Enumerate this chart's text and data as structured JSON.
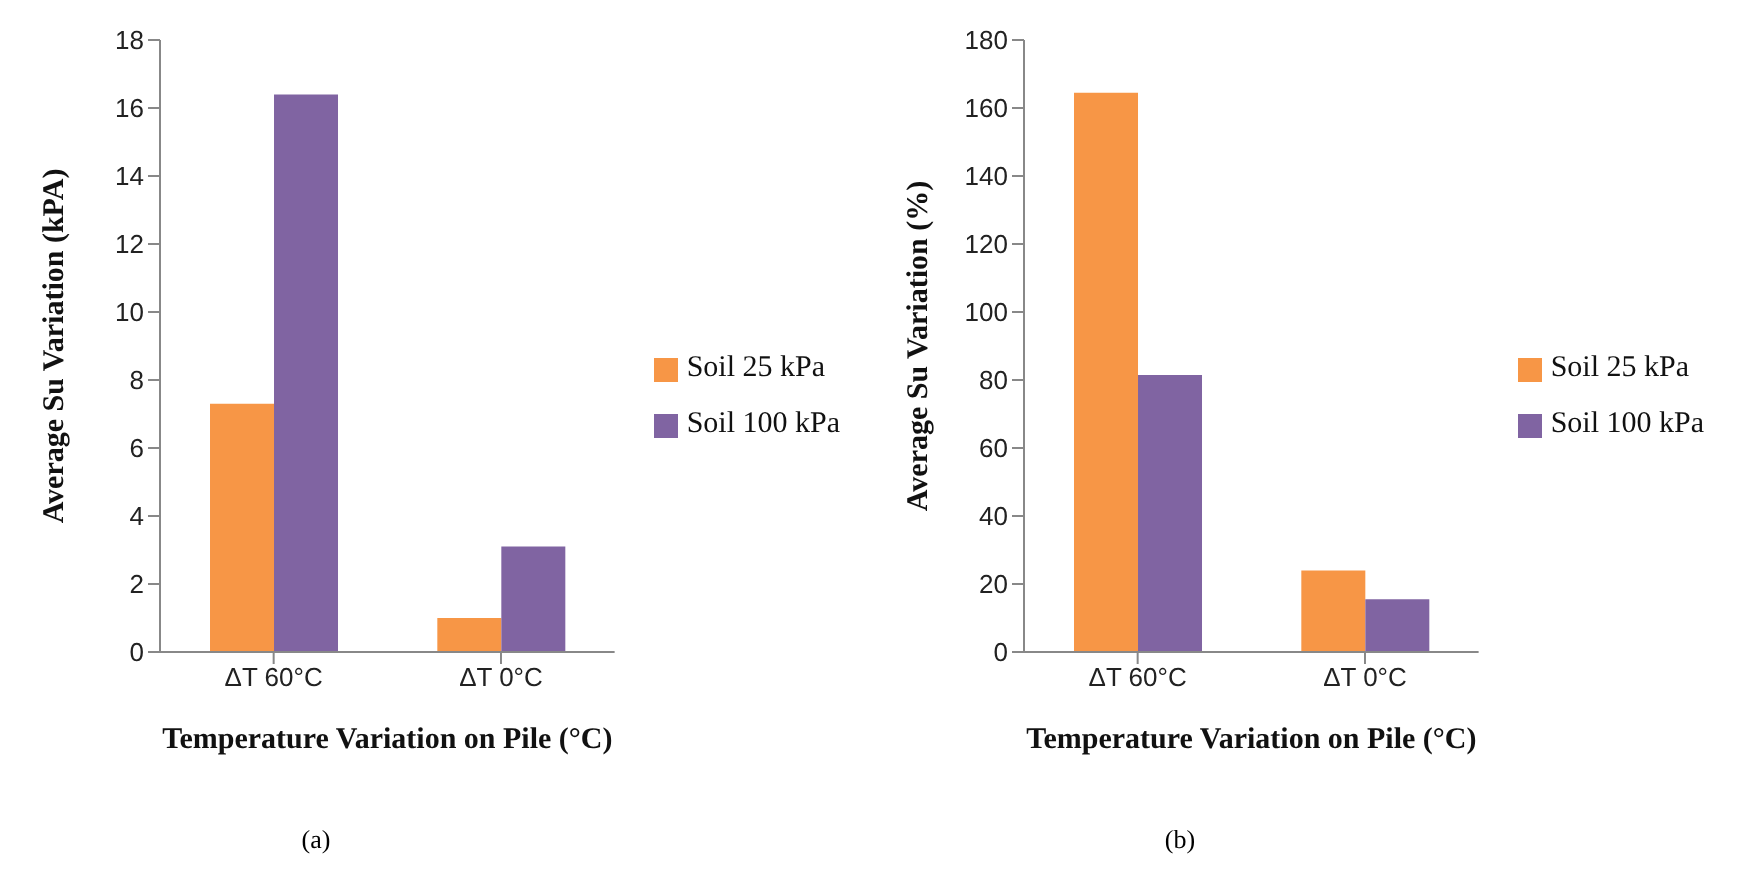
{
  "chart_data": [
    {
      "type": "bar",
      "xlabel": "Temperature  Variation  on Pile  (°C)",
      "ylabel": "Average  Su Variation  (kPA)",
      "categories": [
        "ΔT 60°C",
        "ΔT 0°C"
      ],
      "series": [
        {
          "name": "Soil 25 kPa",
          "color": "#f79646",
          "values": [
            7.3,
            1.0
          ]
        },
        {
          "name": "Soil 100 kPa",
          "color": "#8064a2",
          "values": [
            16.4,
            3.1
          ]
        }
      ],
      "ylim": [
        0,
        18
      ],
      "yticks": [
        0,
        2,
        4,
        6,
        8,
        10,
        12,
        14,
        16,
        18
      ],
      "grid": false,
      "legend": "right",
      "annotations": [
        "(a)"
      ]
    },
    {
      "type": "bar",
      "xlabel": "Temperature  Variation  on Pile  (°C)",
      "ylabel": "Average  Su Variation  (%)",
      "categories": [
        "ΔT 60°C",
        "ΔT 0°C"
      ],
      "series": [
        {
          "name": "Soil 25 kPa",
          "color": "#f79646",
          "values": [
            164.5,
            24
          ]
        },
        {
          "name": "Soil 100 kPa",
          "color": "#8064a2",
          "values": [
            81.5,
            15.5
          ]
        }
      ],
      "ylim": [
        0,
        180
      ],
      "yticks": [
        0,
        20,
        40,
        60,
        80,
        100,
        120,
        140,
        160,
        180
      ],
      "grid": false,
      "legend": "right",
      "annotations": [
        "(b)"
      ]
    }
  ]
}
